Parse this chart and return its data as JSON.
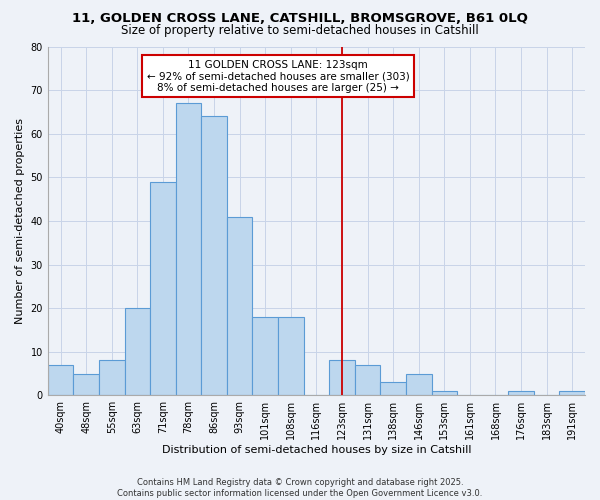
{
  "title": "11, GOLDEN CROSS LANE, CATSHILL, BROMSGROVE, B61 0LQ",
  "subtitle": "Size of property relative to semi-detached houses in Catshill",
  "xlabel": "Distribution of semi-detached houses by size in Catshill",
  "ylabel": "Number of semi-detached properties",
  "categories": [
    "40sqm",
    "48sqm",
    "55sqm",
    "63sqm",
    "71sqm",
    "78sqm",
    "86sqm",
    "93sqm",
    "101sqm",
    "108sqm",
    "116sqm",
    "123sqm",
    "131sqm",
    "138sqm",
    "146sqm",
    "153sqm",
    "161sqm",
    "168sqm",
    "176sqm",
    "183sqm",
    "191sqm"
  ],
  "values": [
    7,
    5,
    8,
    20,
    49,
    67,
    64,
    41,
    18,
    18,
    0,
    8,
    7,
    3,
    5,
    1,
    0,
    0,
    1,
    0,
    1
  ],
  "bar_color": "#bdd7ee",
  "bar_edge_color": "#5b9bd5",
  "grid_color": "#c8d4e8",
  "background_color": "#eef2f8",
  "vline_x_index": 11,
  "vline_color": "#cc0000",
  "annotation_title": "11 GOLDEN CROSS LANE: 123sqm",
  "annotation_line1": "← 92% of semi-detached houses are smaller (303)",
  "annotation_line2": "8% of semi-detached houses are larger (25) →",
  "ylim": [
    0,
    80
  ],
  "yticks": [
    0,
    10,
    20,
    30,
    40,
    50,
    60,
    70,
    80
  ],
  "footer1": "Contains HM Land Registry data © Crown copyright and database right 2025.",
  "footer2": "Contains public sector information licensed under the Open Government Licence v3.0.",
  "title_fontsize": 9.5,
  "subtitle_fontsize": 8.5,
  "axis_label_fontsize": 8,
  "tick_fontsize": 7,
  "annotation_fontsize": 7.5,
  "footer_fontsize": 6
}
